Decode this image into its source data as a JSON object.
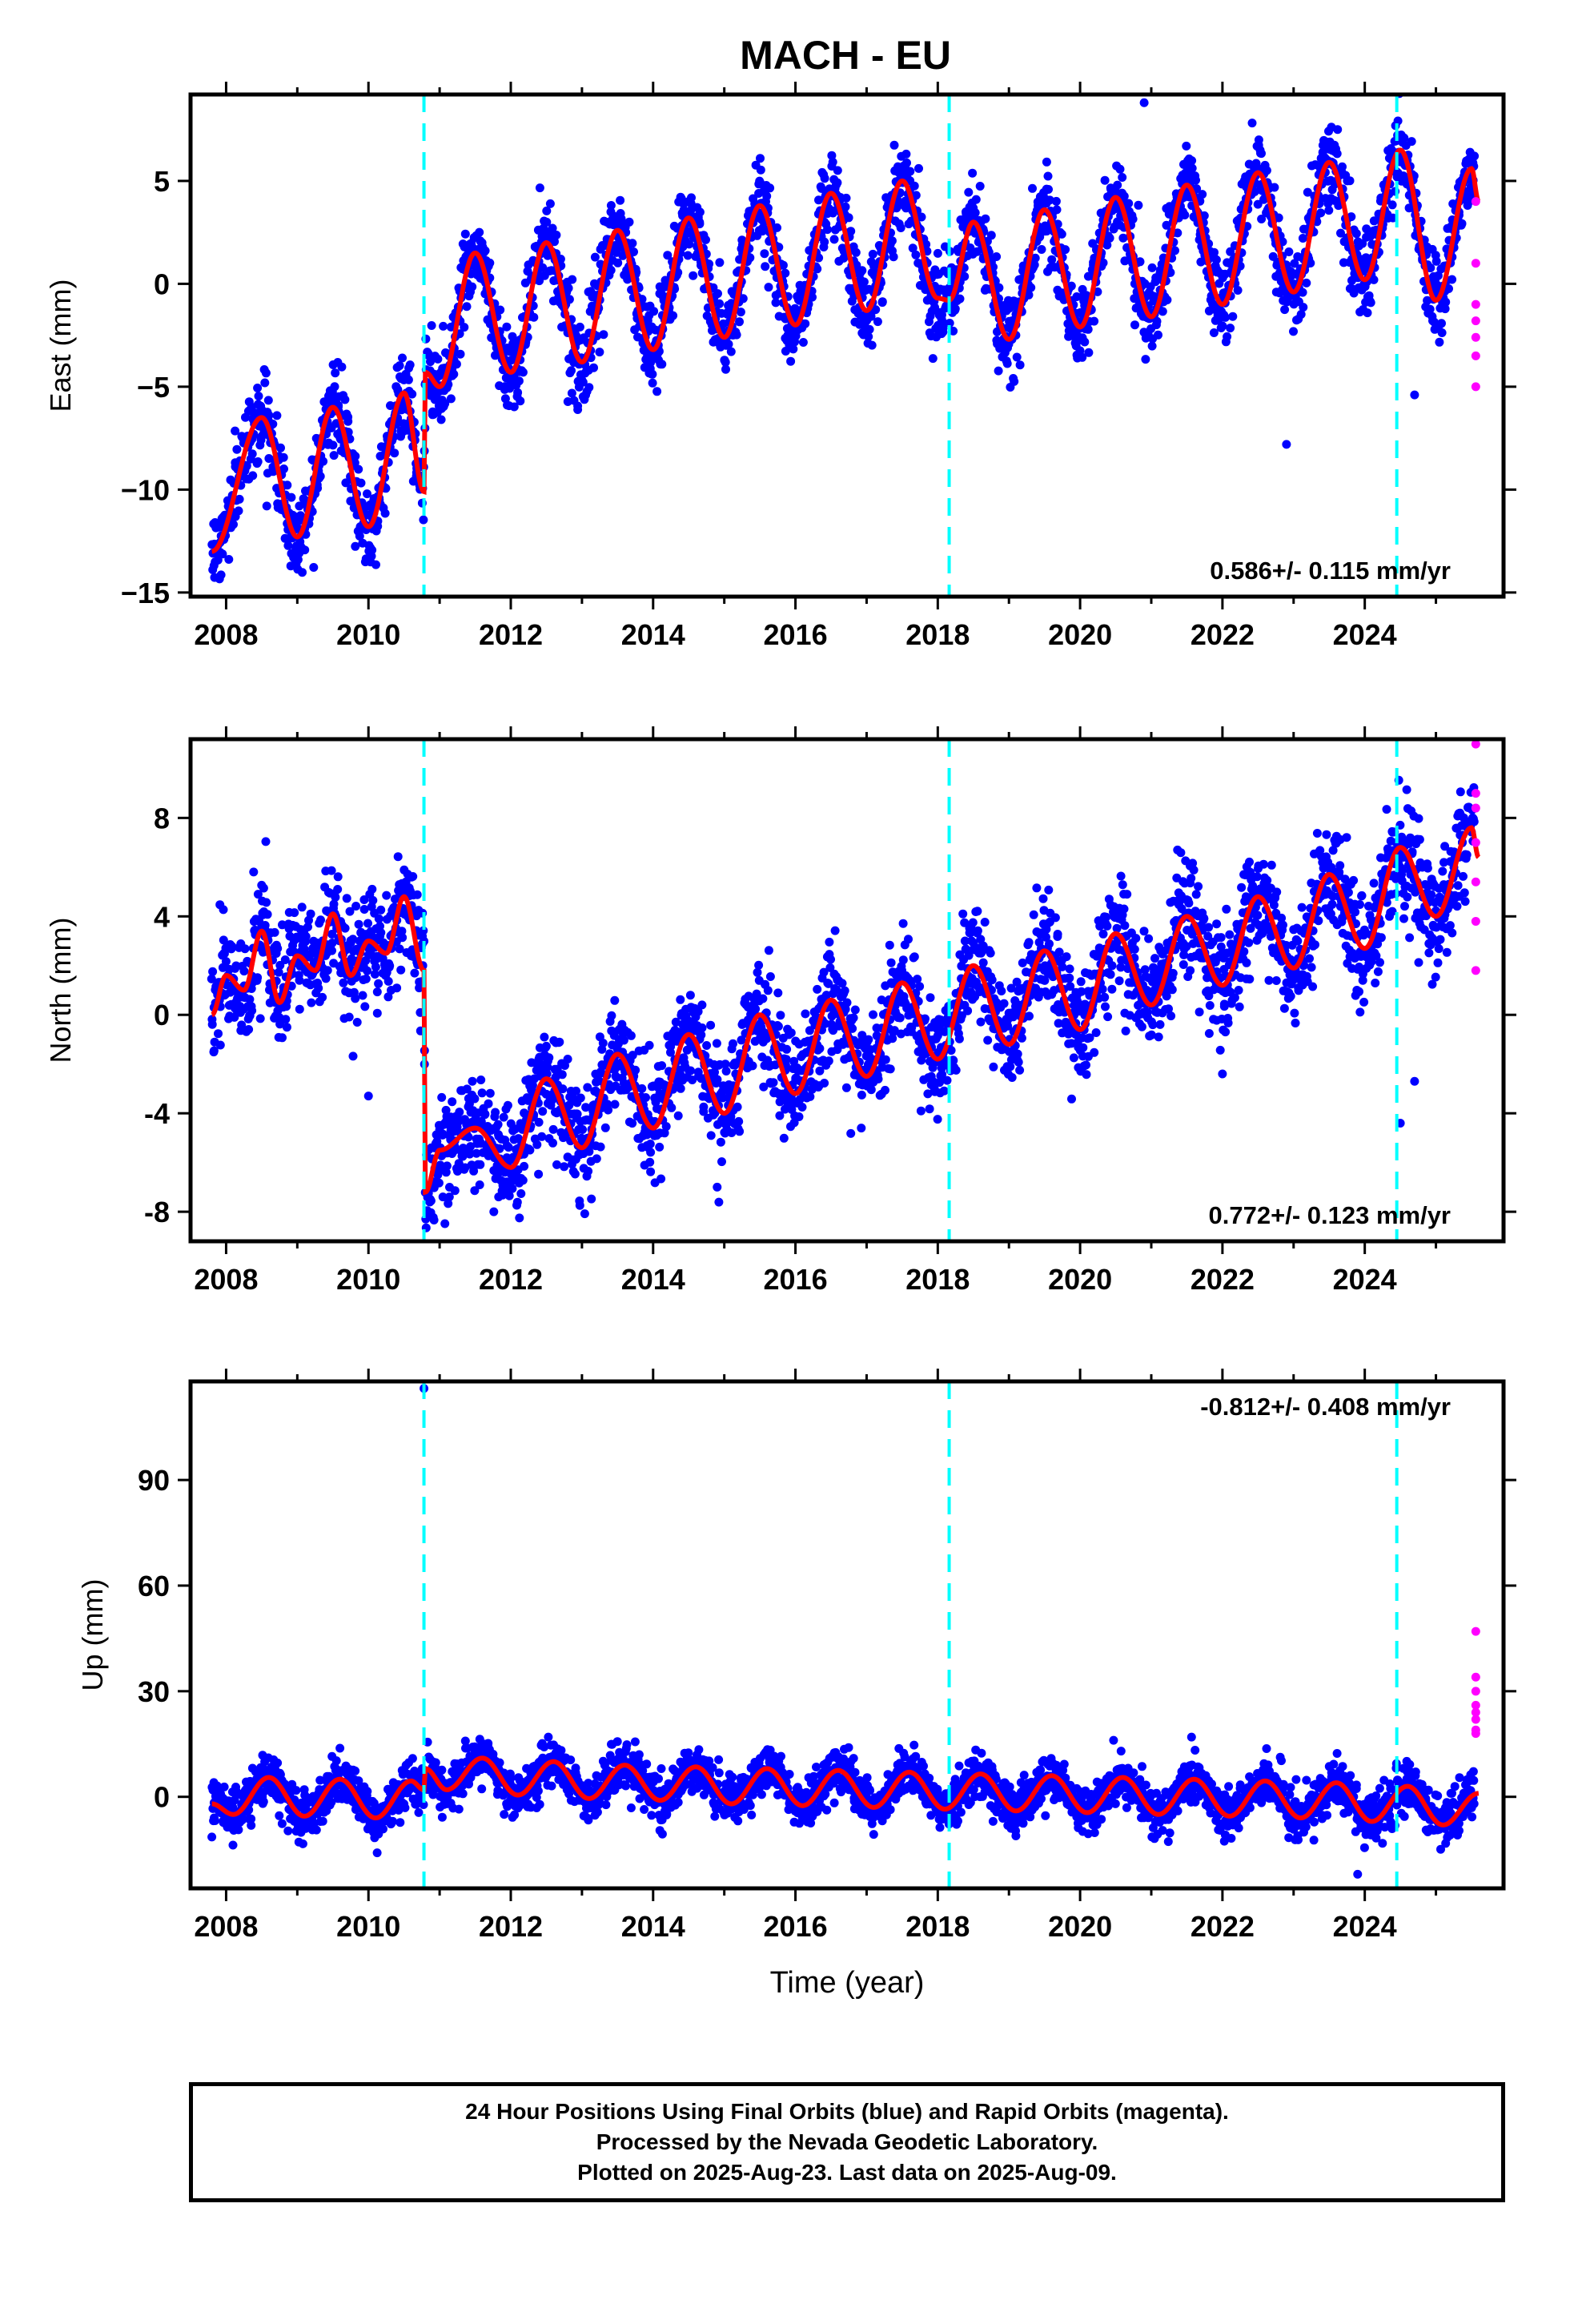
{
  "title": "MACH - EU",
  "caption": [
    "24 Hour Positions Using Final Orbits (blue) and Rapid Orbits (magenta).",
    "Processed by the Nevada Geodetic Laboratory.",
    "Plotted on 2025-Aug-23. Last data on 2025-Aug-09."
  ],
  "colors": {
    "final": "#0000ff",
    "rapid": "#ff00ff",
    "model": "#ff0000",
    "steps": "#00ffff"
  },
  "chart_data": [
    {
      "type": "scatter",
      "panel": "east",
      "ylabel": "East (mm)",
      "xlabel": "",
      "xlim": [
        2007.5,
        2025.95
      ],
      "ylim": [
        -15.2,
        9.2
      ],
      "xticks": [
        2008,
        2010,
        2012,
        2014,
        2016,
        2018,
        2020,
        2022,
        2024
      ],
      "yticks": [
        -15,
        -10,
        -5,
        0,
        5
      ],
      "ytick_labels": [
        "−15",
        "−10",
        "−5",
        "0",
        "5"
      ],
      "velocity_label": "0.586+/- 0.115 mm/yr",
      "velocity_position": "bottom-right",
      "steps": [
        2010.78,
        2018.16,
        2024.45
      ],
      "model_keypoints": {
        "x": [
          2007.8,
          2008.5,
          2009.0,
          2009.5,
          2010.0,
          2010.5,
          2010.78,
          2010.8,
          2011.0,
          2011.5,
          2012.0,
          2012.5,
          2013.0,
          2013.5,
          2014.0,
          2014.5,
          2015.0,
          2015.5,
          2016.0,
          2016.5,
          2017.0,
          2017.5,
          2018.0,
          2018.16,
          2018.5,
          2019.0,
          2019.5,
          2020.0,
          2020.5,
          2021.0,
          2021.5,
          2022.0,
          2022.5,
          2023.0,
          2023.5,
          2024.0,
          2024.5,
          2025.0,
          2025.5,
          2025.6
        ],
        "y": [
          -13.0,
          -6.5,
          -12.3,
          -6.0,
          -11.8,
          -5.3,
          -10.1,
          -4.3,
          -5.0,
          1.5,
          -4.3,
          2.0,
          -3.8,
          2.6,
          -3.2,
          3.2,
          -2.6,
          3.8,
          -2.0,
          4.4,
          -1.3,
          5.0,
          -0.7,
          -0.8,
          3.0,
          -2.7,
          3.6,
          -2.1,
          4.2,
          -1.6,
          4.8,
          -1.0,
          5.4,
          -0.4,
          5.9,
          0.2,
          6.5,
          -0.8,
          5.6,
          4.0
        ]
      },
      "rapid_points": {
        "x": [
          2025.56,
          2025.56,
          2025.56,
          2025.56,
          2025.56,
          2025.56,
          2025.56
        ],
        "y": [
          4.0,
          1.0,
          -1.0,
          -1.8,
          -2.6,
          -3.5,
          -5.0
        ]
      },
      "outliers": {
        "x": [
          2020.9,
          2022.9,
          2024.7
        ],
        "y": [
          8.8,
          -7.8,
          -5.4
        ]
      }
    },
    {
      "type": "scatter",
      "panel": "north",
      "ylabel": "North (mm)",
      "xlabel": "",
      "xlim": [
        2007.5,
        2025.95
      ],
      "ylim": [
        -9.2,
        11.2
      ],
      "xticks": [
        2008,
        2010,
        2012,
        2014,
        2016,
        2018,
        2020,
        2022,
        2024
      ],
      "yticks": [
        -8,
        -4,
        0,
        4,
        8
      ],
      "ytick_labels": [
        "-8",
        "-4",
        "0",
        "4",
        "8"
      ],
      "velocity_label": "0.772+/- 0.123 mm/yr",
      "velocity_position": "bottom-right",
      "steps": [
        2010.78,
        2018.16,
        2024.45
      ],
      "model_keypoints": {
        "x": [
          2007.8,
          2008.0,
          2008.25,
          2008.5,
          2008.75,
          2009.0,
          2009.25,
          2009.5,
          2009.75,
          2010.0,
          2010.25,
          2010.5,
          2010.78,
          2010.8,
          2011.0,
          2011.5,
          2012.0,
          2012.5,
          2013.0,
          2013.5,
          2014.0,
          2014.5,
          2015.0,
          2015.5,
          2016.0,
          2016.5,
          2017.0,
          2017.5,
          2018.0,
          2018.5,
          2019.0,
          2019.5,
          2020.0,
          2020.5,
          2021.0,
          2021.5,
          2022.0,
          2022.5,
          2023.0,
          2023.5,
          2024.0,
          2024.5,
          2025.0,
          2025.5,
          2025.6
        ],
        "y": [
          0.0,
          1.6,
          1.0,
          3.4,
          0.5,
          2.4,
          1.8,
          4.1,
          1.6,
          3.0,
          2.5,
          4.8,
          1.8,
          -7.2,
          -5.5,
          -4.6,
          -6.2,
          -2.6,
          -5.4,
          -1.6,
          -4.6,
          -0.8,
          -4.0,
          0.0,
          -3.2,
          0.6,
          -2.5,
          1.3,
          -1.8,
          2.0,
          -1.2,
          2.6,
          -0.6,
          3.3,
          0.4,
          4.0,
          1.2,
          4.8,
          1.9,
          5.7,
          2.7,
          6.8,
          4.0,
          7.6,
          6.4
        ]
      },
      "rapid_points": {
        "x": [
          2025.56,
          2025.56,
          2025.56,
          2025.56,
          2025.56,
          2025.56,
          2025.56
        ],
        "y": [
          11.0,
          9.0,
          8.4,
          7.0,
          5.4,
          3.8,
          1.8
        ]
      },
      "outliers": {
        "x": [
          2010.0,
          2014.9,
          2024.7,
          2024.5,
          2022.0
        ],
        "y": [
          -3.3,
          -7.0,
          -2.7,
          -4.4,
          -2.4
        ]
      }
    },
    {
      "type": "scatter",
      "panel": "up",
      "ylabel": "Up (mm)",
      "xlabel": "Time (year)",
      "xlim": [
        2007.5,
        2025.95
      ],
      "ylim": [
        -26,
        118
      ],
      "xticks": [
        2008,
        2010,
        2012,
        2014,
        2016,
        2018,
        2020,
        2022,
        2024
      ],
      "yticks": [
        0,
        30,
        60,
        90
      ],
      "ytick_labels": [
        "0",
        "30",
        "60",
        "90"
      ],
      "velocity_label": "-0.812+/- 0.408 mm/yr",
      "velocity_position": "top-right",
      "steps": [
        2010.78,
        2018.16,
        2024.45
      ],
      "model_keypoints": {
        "x": [
          2007.8,
          2008.1,
          2008.6,
          2009.1,
          2009.6,
          2010.1,
          2010.6,
          2010.78,
          2010.8,
          2011.1,
          2011.6,
          2012.1,
          2012.6,
          2013.1,
          2013.6,
          2014.1,
          2014.6,
          2015.1,
          2015.6,
          2016.1,
          2016.6,
          2017.1,
          2017.6,
          2018.1,
          2018.6,
          2019.1,
          2019.6,
          2020.1,
          2020.6,
          2021.1,
          2021.6,
          2022.1,
          2022.6,
          2023.1,
          2023.6,
          2024.1,
          2024.6,
          2025.1,
          2025.6
        ],
        "y": [
          -2.0,
          -5.0,
          5.5,
          -5.5,
          5.0,
          -6.0,
          4.5,
          2.0,
          8.0,
          2.0,
          11.0,
          0.5,
          10.0,
          -0.5,
          9.0,
          -1.0,
          8.5,
          -2.0,
          8.0,
          -2.5,
          7.5,
          -3.0,
          7.0,
          -3.5,
          6.5,
          -4.0,
          6.0,
          -4.5,
          5.5,
          -5.0,
          5.0,
          -5.5,
          4.5,
          -6.0,
          4.0,
          -7.0,
          3.0,
          -8.0,
          1.0
        ]
      },
      "rapid_points": {
        "x": [
          2025.56,
          2025.56,
          2025.56,
          2025.56,
          2025.56,
          2025.56,
          2025.56,
          2025.56
        ],
        "y": [
          47,
          34,
          30,
          26,
          24,
          22,
          19,
          18
        ]
      },
      "outliers": {
        "x": [
          2010.78,
          2023.9
        ],
        "y": [
          116,
          -22
        ]
      }
    }
  ]
}
